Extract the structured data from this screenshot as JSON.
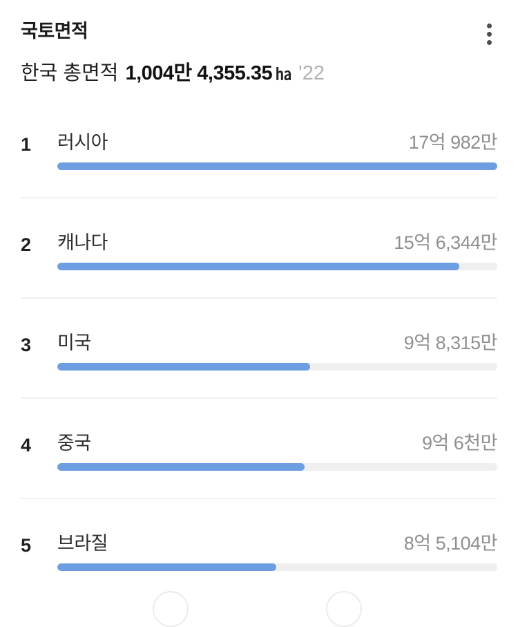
{
  "header": {
    "title": "국토면적",
    "subtitle_prefix": "한국 총면적",
    "subtitle_value": "1,004만 4,355.35",
    "subtitle_unit": "㏊",
    "subtitle_year": "'22",
    "menu_icon": "kebab-vertical-icon"
  },
  "colors": {
    "bar_fill": "#6d9ee1",
    "bar_track": "#efefef",
    "divider": "#f1f1f1",
    "value_text": "#8f8f8f",
    "year_text": "#b1b1b1"
  },
  "rows": [
    {
      "rank": "1",
      "country": "러시아",
      "value": "17억 982만",
      "percent": 100
    },
    {
      "rank": "2",
      "country": "캐나다",
      "value": "15억 6,344만",
      "percent": 91.4
    },
    {
      "rank": "3",
      "country": "미국",
      "value": "9억 8,315만",
      "percent": 57.5
    },
    {
      "rank": "4",
      "country": "중국",
      "value": "9억 6천만",
      "percent": 56.2
    },
    {
      "rank": "5",
      "country": "브라질",
      "value": "8억 5,104만",
      "percent": 49.8
    }
  ],
  "chart_data": {
    "type": "bar",
    "title": "국토면적",
    "subtitle": "한국 총면적 1,004만 4,355.35㏊ '22",
    "unit": "㏊",
    "year_label": "'22",
    "korea_total_label": "1,004만 4,355.35",
    "categories": [
      "러시아",
      "캐나다",
      "미국",
      "중국",
      "브라질"
    ],
    "ranks": [
      1,
      2,
      3,
      4,
      5
    ],
    "value_labels": [
      "17억 982만",
      "15억 6,344만",
      "9억 8,315만",
      "9억 6천만",
      "8억 5,104만"
    ],
    "values_in_man_ha": [
      170982,
      156344,
      98315,
      96000,
      85104
    ],
    "xlim": [
      0,
      170982
    ],
    "orientation": "horizontal",
    "legend": "none",
    "grid": "off"
  },
  "pagination": {
    "prev_icon": "page-prev-circle",
    "next_icon": "page-next-circle"
  }
}
